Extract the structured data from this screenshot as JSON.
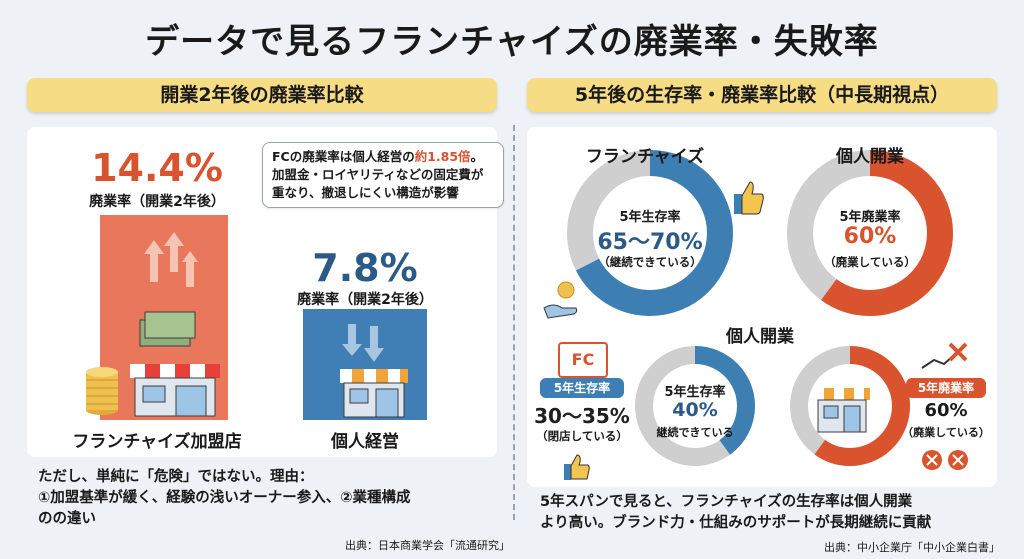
{
  "title": "データで見るフランチャイズの廃業率・失敗率",
  "left": {
    "banner": "開業2年後の廃業率比較",
    "fc_value": "14.4%",
    "fc_sub": "廃業率（開業2年後）",
    "ind_value": "7.8%",
    "ind_sub": "廃業率（開業2年後）",
    "bubble_line1_a": "FCの廃業率は個人経営の",
    "bubble_line1_b": "約1.85倍",
    "bubble_line1_c": "。",
    "bubble_line2": "加盟金・ロイヤリティなどの固定費が",
    "bubble_line3": "重なり、撤退しにくい構造が影響",
    "cat_fc": "フランチャイズ加盟店",
    "cat_ind": "個人経営",
    "note_line1": "ただし、単純に「危険」ではない。理由：",
    "note_line2": "①加盟基準が緩く、経験の浅いオーナー参入、②業種構成",
    "note_line3": "のの違い",
    "source": "出典：日本商業学会「流通研究」"
  },
  "right": {
    "banner": "5年後の生存率・廃業率比較（中長期視点）",
    "d1_title": "フランチャイズ",
    "d1_l1": "5年生存率",
    "d1_l2": "65〜70%",
    "d1_l3": "（継続できている）",
    "d2_title": "個人開業",
    "d2_l1": "5年廃業率",
    "d2_l2": "60%",
    "d2_l3": "（廃業している）",
    "lower_title": "個人開業",
    "fc_icon_text": "FC",
    "tag_left": "5年生存率",
    "left_val": "30〜35%",
    "left_sub": "（閉店している）",
    "d3_l1": "5年生存率",
    "d3_l2": "40%",
    "d3_l3": "継続できている",
    "tag_right": "5年廃業率",
    "right_val": "60%",
    "right_sub": "（廃業している）",
    "note_line1": "5年スパンで見ると、フランチャイズの生存率は個人開業",
    "note_line2": "より高い。ブランド力・仕組みのサポートが長期継続に貢献",
    "source": "出典：中小企業庁「中小企業白書」"
  },
  "chart_data": [
    {
      "type": "bar",
      "title": "開業2年後の廃業率比較",
      "categories": [
        "フランチャイズ加盟店",
        "個人経営"
      ],
      "values": [
        14.4,
        7.8
      ],
      "ylabel": "廃業率（開業2年後）",
      "colors": [
        "#e9775c",
        "#3f7fb5"
      ]
    },
    {
      "type": "pie",
      "title": "フランチャイズ",
      "slices": [
        {
          "label": "5年生存率",
          "value": 67.5
        },
        {
          "label": "",
          "value": 32.5
        }
      ],
      "colors": [
        "#3e7fb3",
        "#cfcfcf"
      ]
    },
    {
      "type": "pie",
      "title": "個人開業",
      "slices": [
        {
          "label": "5年廃業率",
          "value": 60
        },
        {
          "label": "",
          "value": 40
        }
      ],
      "colors": [
        "#d9532f",
        "#cfcfcf"
      ]
    },
    {
      "type": "pie",
      "title": "個人開業",
      "slices": [
        {
          "label": "5年生存率",
          "value": 40
        },
        {
          "label": "",
          "value": 60
        }
      ],
      "colors": [
        "#3e7fb3",
        "#cfcfcf"
      ]
    },
    {
      "type": "pie",
      "title": "個人開業",
      "slices": [
        {
          "label": "5年廃業率",
          "value": 60
        },
        {
          "label": "",
          "value": 40
        }
      ],
      "colors": [
        "#d9532f",
        "#cfcfcf"
      ]
    }
  ]
}
